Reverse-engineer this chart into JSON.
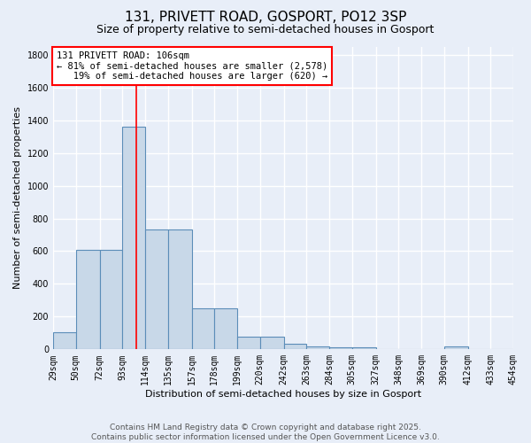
{
  "title1": "131, PRIVETT ROAD, GOSPORT, PO12 3SP",
  "title2": "Size of property relative to semi-detached houses in Gosport",
  "xlabel": "Distribution of semi-detached houses by size in Gosport",
  "ylabel": "Number of semi-detached properties",
  "bin_edges": [
    29,
    50,
    72,
    93,
    114,
    135,
    157,
    178,
    199,
    220,
    242,
    263,
    284,
    305,
    327,
    348,
    369,
    390,
    412,
    433,
    454
  ],
  "bar_heights": [
    107,
    610,
    610,
    1360,
    730,
    730,
    250,
    250,
    80,
    80,
    35,
    20,
    15,
    15,
    0,
    0,
    0,
    20,
    0,
    0
  ],
  "bar_color": "#c8d8e8",
  "bar_edge_color": "#5b8db8",
  "property_size": 106,
  "annotation_text": "131 PRIVETT ROAD: 106sqm\n← 81% of semi-detached houses are smaller (2,578)\n   19% of semi-detached houses are larger (620) →",
  "annotation_box_color": "white",
  "annotation_box_edge_color": "red",
  "red_line_color": "red",
  "ylim": [
    0,
    1850
  ],
  "yticks": [
    0,
    200,
    400,
    600,
    800,
    1000,
    1200,
    1400,
    1600,
    1800
  ],
  "background_color": "#e8eef8",
  "grid_color": "white",
  "footer_line1": "Contains HM Land Registry data © Crown copyright and database right 2025.",
  "footer_line2": "Contains public sector information licensed under the Open Government Licence v3.0.",
  "title1_fontsize": 11,
  "title2_fontsize": 9,
  "xlabel_fontsize": 8,
  "ylabel_fontsize": 8,
  "tick_fontsize": 7,
  "annotation_fontsize": 7.5,
  "footer_fontsize": 6.5
}
